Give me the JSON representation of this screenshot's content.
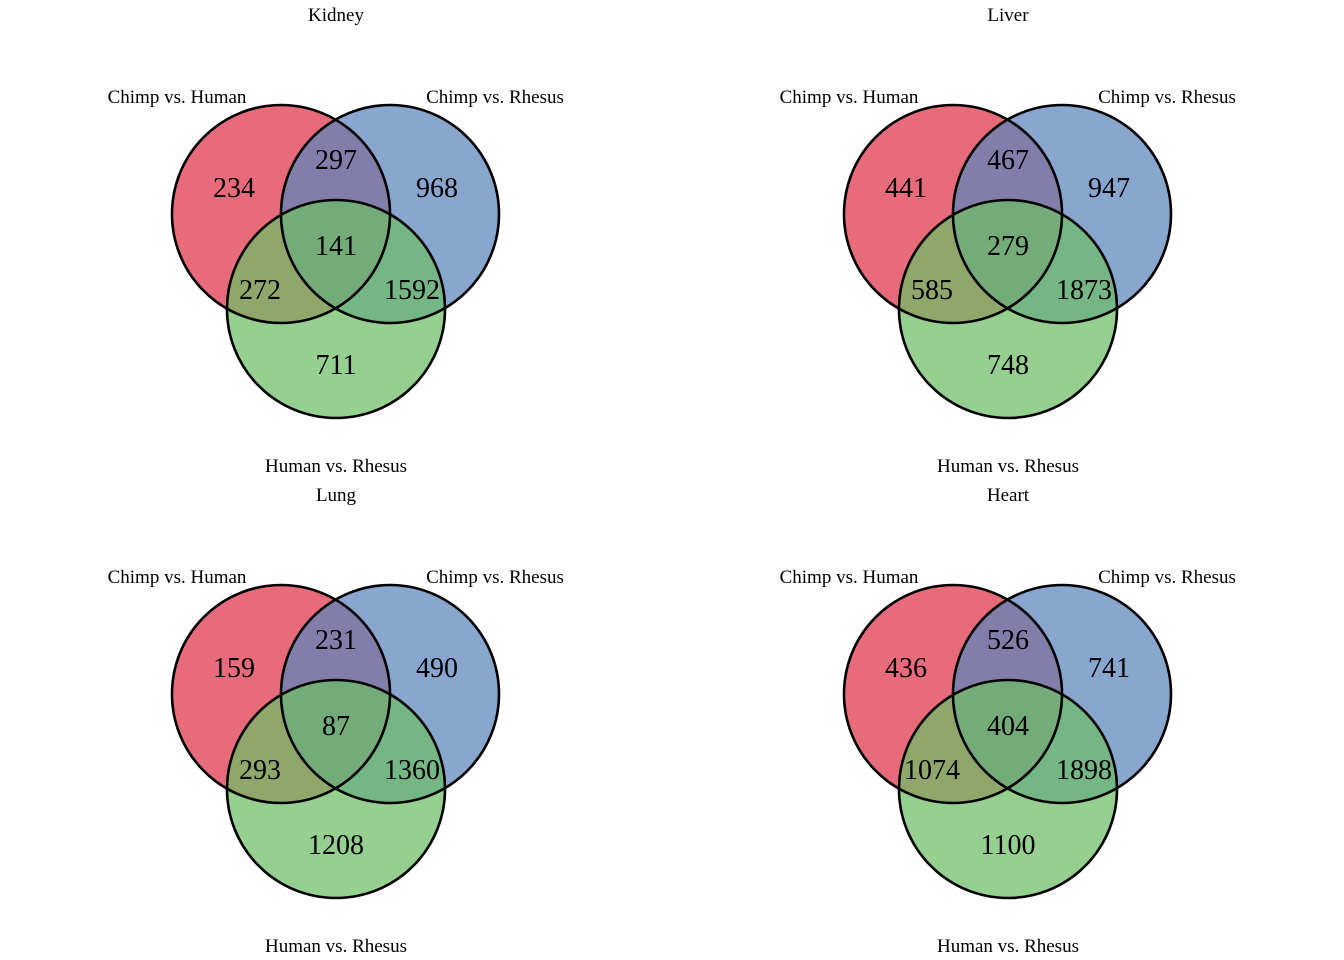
{
  "colors": {
    "set_a": "#E34A5E",
    "set_b": "#5B84BC",
    "set_c": "#6DBE66",
    "outline": "#000000"
  },
  "set_labels": {
    "a": "Chimp vs. Human",
    "b": "Chimp vs. Rhesus",
    "c": "Human vs. Rhesus"
  },
  "panels": [
    {
      "title": "Kidney",
      "counts": {
        "a": "234",
        "ab": "297",
        "b": "968",
        "abc": "141",
        "ac": "272",
        "bc": "1592",
        "c": "711"
      }
    },
    {
      "title": "Liver",
      "counts": {
        "a": "441",
        "ab": "467",
        "b": "947",
        "abc": "279",
        "ac": "585",
        "bc": "1873",
        "c": "748"
      }
    },
    {
      "title": "Lung",
      "counts": {
        "a": "159",
        "ab": "231",
        "b": "490",
        "abc": "87",
        "ac": "293",
        "bc": "1360",
        "c": "1208"
      }
    },
    {
      "title": "Heart",
      "counts": {
        "a": "436",
        "ab": "526",
        "b": "741",
        "abc": "404",
        "ac": "1074",
        "bc": "1898",
        "c": "1100"
      }
    }
  ]
}
